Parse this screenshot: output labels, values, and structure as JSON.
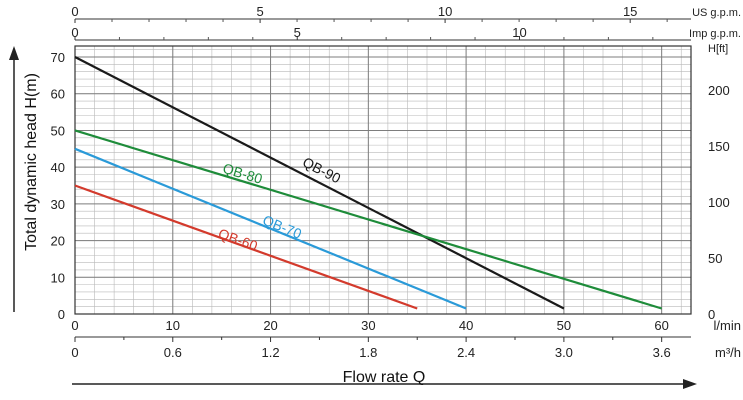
{
  "chart_data": {
    "type": "line",
    "xlabel": "Flow rate Q",
    "ylabel": "Total dynamic head H(m)",
    "x_unit": "l/min",
    "xlim": [
      0,
      63
    ],
    "ylim": [
      0,
      73
    ],
    "x_ticks": [
      "0",
      "10",
      "20",
      "30",
      "40",
      "50",
      "60"
    ],
    "y_ticks": [
      "0",
      "10",
      "20",
      "30",
      "40",
      "50",
      "60",
      "70"
    ],
    "m3h_unit": "m³/h",
    "m3h_ticks": [
      {
        "v": 0,
        "label": "0"
      },
      {
        "v": 10,
        "label": "0.6"
      },
      {
        "v": 20,
        "label": "1.2"
      },
      {
        "v": 30,
        "label": "1.8"
      },
      {
        "v": 40,
        "label": "2.4"
      },
      {
        "v": 50,
        "label": "3.0"
      },
      {
        "v": 60,
        "label": "3.6"
      }
    ],
    "us_gpm_unit": "US g.p.m.",
    "us_gpm_ticks": [
      {
        "v": 0,
        "label": "0"
      },
      {
        "v": 18.93,
        "label": "5"
      },
      {
        "v": 37.85,
        "label": "10"
      },
      {
        "v": 56.78,
        "label": "15"
      }
    ],
    "imp_gpm_unit": "Imp g.p.m.",
    "imp_gpm_ticks": [
      {
        "v": 0,
        "label": "0"
      },
      {
        "v": 22.73,
        "label": "5"
      },
      {
        "v": 45.46,
        "label": "10"
      }
    ],
    "ft_unit": "H[ft]",
    "ft_ticks": [
      {
        "v": 0,
        "label": "0"
      },
      {
        "v": 15.24,
        "label": "50"
      },
      {
        "v": 30.48,
        "label": "100"
      },
      {
        "v": 45.72,
        "label": "150"
      },
      {
        "v": 60.96,
        "label": "200"
      }
    ],
    "grid": true,
    "series": [
      {
        "name": "QB-90",
        "color": "#1a1a1a",
        "x": [
          0,
          50
        ],
        "y": [
          70,
          1.5
        ],
        "label_at": [
          25,
          38
        ]
      },
      {
        "name": "QB-80",
        "color": "#1e8c3a",
        "x": [
          0,
          60
        ],
        "y": [
          50,
          1.5
        ],
        "label_at": [
          17,
          37
        ]
      },
      {
        "name": "QB-70",
        "color": "#2a9ad8",
        "x": [
          0,
          40
        ],
        "y": [
          45,
          1.5
        ],
        "label_at": [
          21,
          22.5
        ]
      },
      {
        "name": "QB-60",
        "color": "#d33a2c",
        "x": [
          0,
          35
        ],
        "y": [
          35,
          1.5
        ],
        "label_at": [
          16.5,
          19
        ]
      }
    ]
  }
}
